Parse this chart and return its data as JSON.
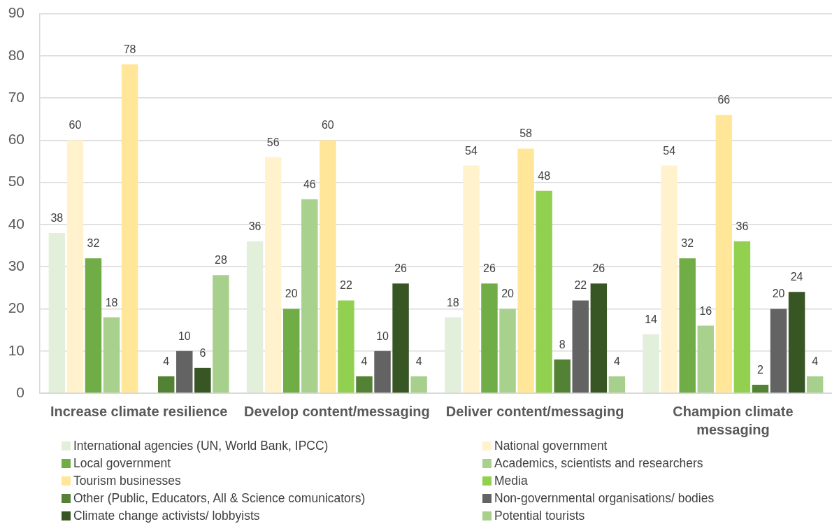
{
  "chart_data": {
    "type": "bar",
    "categories": [
      "Increase climate resilience",
      "Develop content/messaging",
      "Deliver content/messaging",
      "Champion climate messaging"
    ],
    "series": [
      {
        "name": "International agencies (UN, World Bank, IPCC)",
        "color": "#e2efda",
        "values": [
          38,
          36,
          18,
          14
        ]
      },
      {
        "name": "National government",
        "color": "#fff2cc",
        "values": [
          60,
          56,
          54,
          54
        ]
      },
      {
        "name": "Local government",
        "color": "#70ad47",
        "values": [
          32,
          20,
          26,
          32
        ]
      },
      {
        "name": "Academics, scientists and researchers",
        "color": "#a9d18e",
        "values": [
          18,
          46,
          20,
          16
        ]
      },
      {
        "name": "Tourism businesses",
        "color": "#ffe699",
        "values": [
          78,
          60,
          58,
          66
        ]
      },
      {
        "name": "Media",
        "color": "#92d050",
        "values": [
          null,
          22,
          48,
          36
        ]
      },
      {
        "name": "Other (Public, Educators, All & Science comunicators)",
        "color": "#548235",
        "values": [
          4,
          4,
          8,
          2
        ]
      },
      {
        "name": "Non-governmental organisations/ bodies",
        "color": "#636363",
        "values": [
          10,
          10,
          22,
          20
        ]
      },
      {
        "name": "Climate change activists/ lobbyists",
        "color": "#375623",
        "values": [
          6,
          26,
          26,
          24
        ]
      },
      {
        "name": "Potential tourists",
        "color": "#a8d08d",
        "values": [
          28,
          4,
          4,
          4
        ]
      }
    ],
    "ylim": [
      0,
      90
    ],
    "yticks": [
      0,
      10,
      20,
      30,
      40,
      50,
      60,
      70,
      80,
      90
    ],
    "grid": "y",
    "legend": "bottom",
    "data_labels": true
  }
}
